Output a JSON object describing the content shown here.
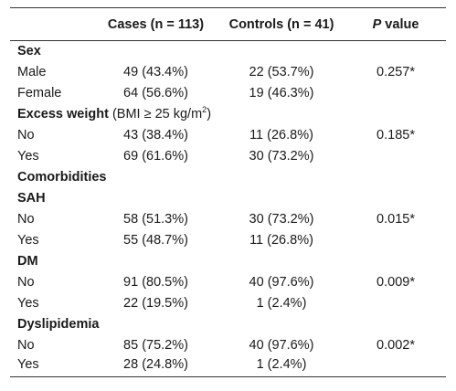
{
  "header": {
    "col_cases": "Cases (n = 113)",
    "col_controls": "Controls (n = 41)",
    "col_p_italic": "P",
    "col_p_rest": " value"
  },
  "sections": {
    "sex": "Sex",
    "excess_weight": "Excess weight",
    "excess_weight_note": "(BMI ≥ 25 kg/m",
    "excess_weight_sup": "2",
    "excess_weight_close": ")",
    "comorbidities": "Comorbidities",
    "sah": "SAH",
    "dm": "DM",
    "dyslipidemia": "Dyslipidemia"
  },
  "rows": {
    "male": {
      "label": "Male",
      "cases": "49 (43.4%)",
      "controls": "22 (53.7%)",
      "p": "0.257*"
    },
    "female": {
      "label": "Female",
      "cases": "64 (56.6%)",
      "controls": "19 (46.3%)",
      "p": ""
    },
    "ew_no": {
      "label": "No",
      "cases": "43 (38.4%)",
      "controls": "11 (26.8%)",
      "p": "0.185*"
    },
    "ew_yes": {
      "label": "Yes",
      "cases": "69 (61.6%)",
      "controls": "30 (73.2%)",
      "p": ""
    },
    "sah_no": {
      "label": "No",
      "cases": "58 (51.3%)",
      "controls": "30 (73.2%)",
      "p": "0.015*"
    },
    "sah_yes": {
      "label": "Yes",
      "cases": "55 (48.7%)",
      "controls": "11 (26.8%)",
      "p": ""
    },
    "dm_no": {
      "label": "No",
      "cases": "91 (80.5%)",
      "controls": "40 (97.6%)",
      "p": "0.009*"
    },
    "dm_yes": {
      "label": "Yes",
      "cases": "22 (19.5%)",
      "controls": "1 (2.4%)",
      "p": ""
    },
    "dys_no": {
      "label": "No",
      "cases": "85 (75.2%)",
      "controls": "40 (97.6%)",
      "p": "0.002*"
    },
    "dys_yes": {
      "label": "Yes",
      "cases": "28 (24.8%)",
      "controls": "1 (2.4%)",
      "p": ""
    }
  }
}
